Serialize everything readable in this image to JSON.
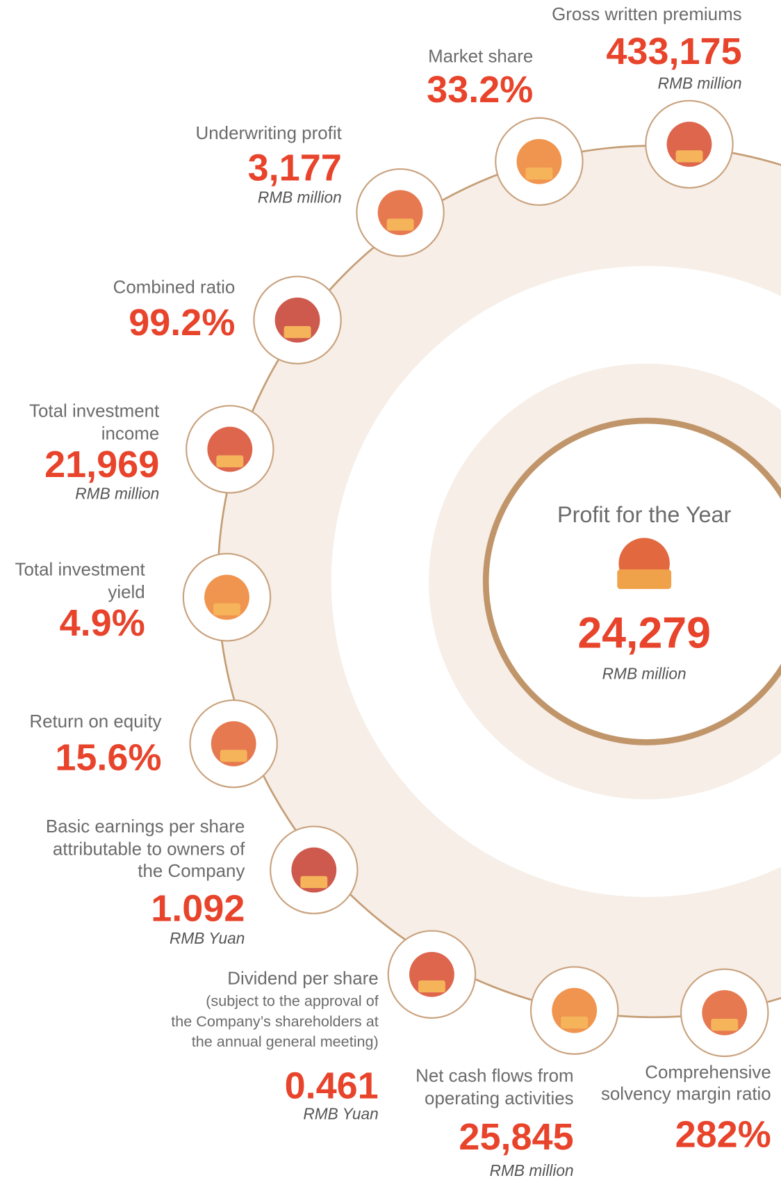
{
  "center": {
    "title": "Profit for the Year",
    "value": "24,279",
    "unit": "RMB million"
  },
  "items": [
    {
      "label": [
        "Gross written premiums"
      ],
      "value": "433,175",
      "unit": "RMB million"
    },
    {
      "label": [
        "Market share"
      ],
      "value": "33.2%"
    },
    {
      "label": [
        "Underwriting profit"
      ],
      "value": "3,177",
      "unit": "RMB million"
    },
    {
      "label": [
        "Combined ratio"
      ],
      "value": "99.2%"
    },
    {
      "label": [
        "Total investment",
        "income"
      ],
      "value": "21,969",
      "unit": "RMB million"
    },
    {
      "label": [
        "Total investment",
        "yield"
      ],
      "value": "4.9%"
    },
    {
      "label": [
        "Return on equity"
      ],
      "value": "15.6%"
    },
    {
      "label": [
        "Basic earnings per share",
        "attributable to owners of",
        "the Company"
      ],
      "value": "1.092",
      "unit": "RMB Yuan"
    },
    {
      "label": [
        "Dividend per share"
      ],
      "note": [
        "(subject to the approval of",
        "the Company’s shareholders at",
        "the annual general meeting)"
      ],
      "value": "0.461",
      "unit": "RMB Yuan"
    },
    {
      "label": [
        "Net cash flows from",
        "operating activities"
      ],
      "value": "25,845",
      "unit": "RMB million"
    },
    {
      "label": [
        "Comprehensive",
        "solvency margin ratio"
      ],
      "value": "282%"
    }
  ]
}
